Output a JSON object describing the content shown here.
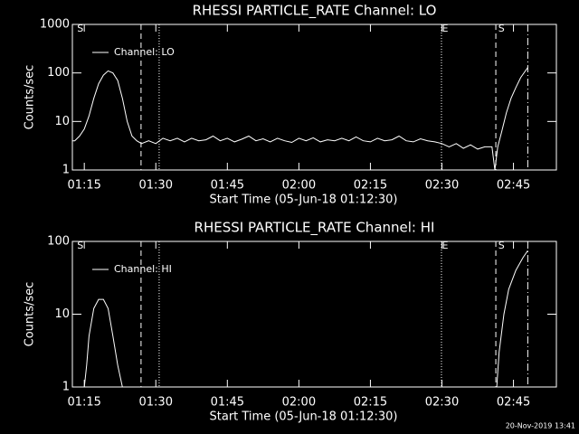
{
  "chart_data": [
    {
      "type": "line",
      "title": "RHESSI PARTICLE_RATE Channel: LO",
      "xlabel": "Start Time (05-Jun-18 01:12:30)",
      "ylabel": "Counts/sec",
      "log_y": true,
      "xlim": [
        0,
        101.5
      ],
      "ylim": [
        1,
        1000
      ],
      "xticks": [
        {
          "value": 2.5,
          "label": "01:15"
        },
        {
          "value": 17.5,
          "label": "01:30"
        },
        {
          "value": 32.5,
          "label": "01:45"
        },
        {
          "value": 47.5,
          "label": "02:00"
        },
        {
          "value": 62.5,
          "label": "02:15"
        },
        {
          "value": 77.5,
          "label": "02:30"
        },
        {
          "value": 92.5,
          "label": "02:45"
        }
      ],
      "yticks": [
        1,
        10,
        100,
        1000
      ],
      "legend": "upper left",
      "vlines": [
        {
          "x": 14.4,
          "style": "dashed"
        },
        {
          "x": 18.2,
          "style": "dotted"
        },
        {
          "x": 77.4,
          "style": "dotted"
        },
        {
          "x": 88.8,
          "style": "dashed"
        },
        {
          "x": 95.5,
          "style": "dashdot"
        }
      ],
      "annotations": [
        {
          "text": "S",
          "x": 1
        },
        {
          "text": "E",
          "x": 77.5
        },
        {
          "text": "S",
          "x": 89.3
        }
      ],
      "series": [
        {
          "name": "Channel: LO",
          "color": "#ffffff",
          "x": [
            0,
            0.5,
            1.5,
            2.5,
            3.5,
            4.5,
            5.5,
            6.5,
            7.5,
            8.5,
            9.5,
            10.5,
            11.5,
            12.5,
            13.5,
            14.5,
            16,
            17.5,
            19,
            20.5,
            22,
            23.5,
            25,
            26.5,
            28,
            29.5,
            31,
            32.5,
            34,
            35.5,
            37,
            38.5,
            40,
            41.5,
            43,
            44.5,
            46,
            47.5,
            49,
            50.5,
            52,
            53.5,
            55,
            56.5,
            58,
            59.5,
            61,
            62.5,
            64,
            65.5,
            67,
            68.5,
            70,
            71.5,
            73,
            74.5,
            76,
            77.5,
            79,
            80.5,
            82,
            83.5,
            85,
            86.5,
            88,
            88.6,
            89.2,
            90,
            91,
            92,
            93,
            94,
            95.5
          ],
          "values": [
            4,
            4,
            5,
            7,
            13,
            30,
            60,
            90,
            110,
            100,
            70,
            30,
            10,
            5,
            4,
            3.5,
            4,
            3.5,
            4.5,
            4,
            4.5,
            3.8,
            4.5,
            4,
            4.2,
            5,
            4,
            4.5,
            3.8,
            4.3,
            5,
            4,
            4.4,
            3.8,
            4.5,
            4,
            3.7,
            4.5,
            4,
            4.6,
            3.8,
            4.2,
            4,
            4.5,
            4,
            4.8,
            4,
            3.8,
            4.5,
            4,
            4.2,
            5,
            4,
            3.8,
            4.4,
            4,
            3.8,
            3.5,
            3,
            3.5,
            2.8,
            3.3,
            2.7,
            3,
            3,
            1,
            3,
            6,
            15,
            30,
            50,
            80,
            130
          ]
        }
      ]
    },
    {
      "type": "line",
      "title": "RHESSI PARTICLE_RATE Channel: HI",
      "xlabel": "Start Time (05-Jun-18 01:12:30)",
      "ylabel": "Counts/sec",
      "log_y": true,
      "xlim": [
        0,
        101.5
      ],
      "ylim": [
        1,
        100
      ],
      "xticks": [
        {
          "value": 2.5,
          "label": "01:15"
        },
        {
          "value": 17.5,
          "label": "01:30"
        },
        {
          "value": 32.5,
          "label": "01:45"
        },
        {
          "value": 47.5,
          "label": "02:00"
        },
        {
          "value": 62.5,
          "label": "02:15"
        },
        {
          "value": 77.5,
          "label": "02:30"
        },
        {
          "value": 92.5,
          "label": "02:45"
        }
      ],
      "yticks": [
        1,
        10,
        100
      ],
      "legend": "upper left",
      "vlines": [
        {
          "x": 14.4,
          "style": "dashed"
        },
        {
          "x": 18.2,
          "style": "dotted"
        },
        {
          "x": 77.4,
          "style": "dotted"
        },
        {
          "x": 88.8,
          "style": "dashed"
        },
        {
          "x": 95.5,
          "style": "dashdot"
        }
      ],
      "annotations": [
        {
          "text": "S",
          "x": 1
        },
        {
          "text": "E",
          "x": 77.5
        },
        {
          "text": "S",
          "x": 89.3
        }
      ],
      "series": [
        {
          "name": "Channel: HI",
          "color": "#ffffff",
          "x": [
            2.5,
            3,
            3.5,
            4.5,
            5.5,
            6.5,
            7.5,
            8.5,
            9.5,
            10.5,
            50,
            89,
            89.5,
            90.5,
            91.5,
            93,
            94.5,
            95.5
          ],
          "values": [
            1,
            2,
            5,
            12,
            16,
            16,
            12,
            5,
            2,
            1,
            null,
            1,
            3,
            10,
            22,
            40,
            60,
            75
          ]
        }
      ]
    }
  ],
  "footer": "20-Nov-2019 13:41"
}
